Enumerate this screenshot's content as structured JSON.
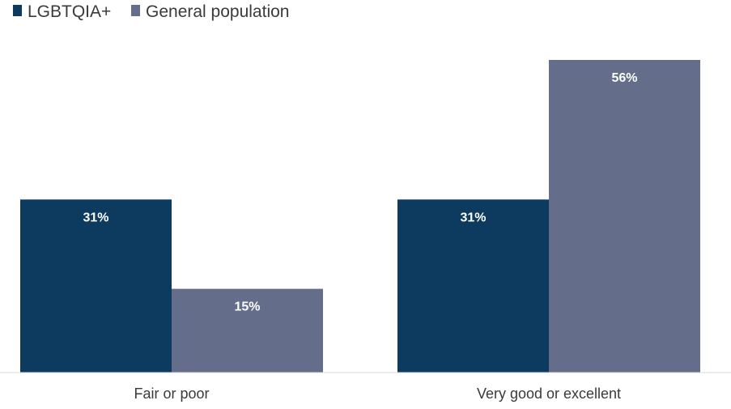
{
  "chart_data": {
    "type": "bar",
    "categories": [
      "Fair or poor",
      "Very good or excellent"
    ],
    "series": [
      {
        "name": "LGBTQIA+",
        "values": [
          31,
          31
        ],
        "color": "#0d3a5f"
      },
      {
        "name": "General population",
        "values": [
          15,
          56
        ],
        "color": "#646e8a"
      }
    ],
    "value_labels": [
      [
        "31%",
        "31%"
      ],
      [
        "15%",
        "56%"
      ]
    ],
    "ylim": [
      0,
      60
    ],
    "grid": false,
    "legend_position": "top-left",
    "title": "",
    "xlabel": "",
    "ylabel": ""
  }
}
